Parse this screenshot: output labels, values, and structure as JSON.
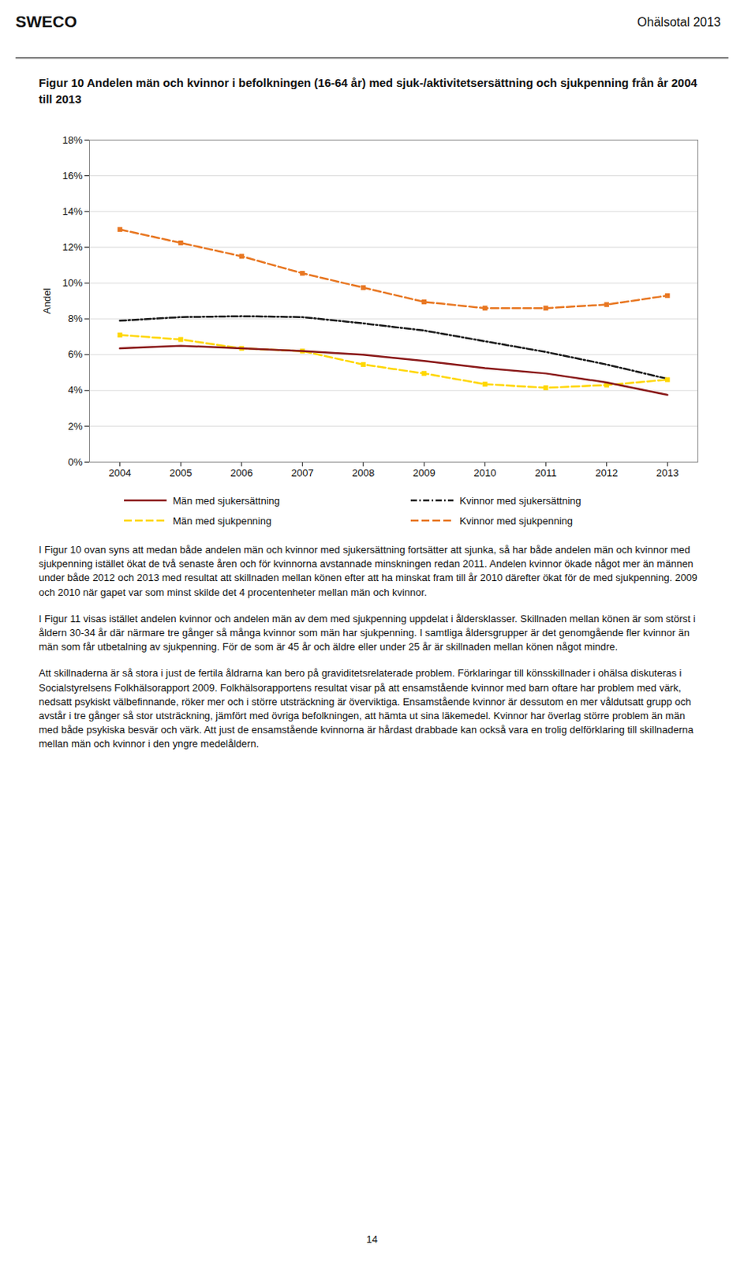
{
  "header_left": "SWECO",
  "header_right": "Ohälsotal 2013",
  "chart_data": {
    "type": "line",
    "title": "Figur 10 Andelen män och kvinnor i befolkningen (16-64 år) med sjuk-/aktivitetsersättning och sjukpenning från år 2004 till 2013",
    "x": [
      2004,
      2005,
      2006,
      2007,
      2008,
      2009,
      2010,
      2011,
      2012,
      2013
    ],
    "series": [
      {
        "name": "Kvinnor med sjukpenning",
        "color": "#E87722",
        "line_style": "dashed",
        "marker": "square",
        "values": [
          13.0,
          12.25,
          11.5,
          10.55,
          9.75,
          8.95,
          8.6,
          8.6,
          8.8,
          9.3
        ]
      },
      {
        "name": "Kvinnor med sjukersättning",
        "color": "#1a1a1a",
        "line_style": "dashdot",
        "values": [
          7.9,
          8.1,
          8.15,
          8.1,
          7.75,
          7.35,
          6.75,
          6.15,
          5.45,
          4.65
        ]
      },
      {
        "name": "Män med sjukpenning",
        "color": "#FFD700",
        "line_style": "dashed",
        "marker": "square",
        "values": [
          7.1,
          6.85,
          6.35,
          6.2,
          5.45,
          4.95,
          4.35,
          4.15,
          4.3,
          4.6
        ]
      },
      {
        "name": "Män med sjukersättning",
        "color": "#8B1A1A",
        "line_style": "solid",
        "values": [
          6.35,
          6.5,
          6.35,
          6.2,
          6.0,
          5.65,
          5.25,
          4.95,
          4.45,
          3.75
        ]
      }
    ],
    "ylabel": "Andel",
    "xlim": [
      2003.5,
      2013.5
    ],
    "xticks": [
      2004,
      2005,
      2006,
      2007,
      2008,
      2009,
      2010,
      2011,
      2012,
      2013
    ],
    "ylim": [
      0,
      18
    ],
    "yticks": [
      {
        "value": 0,
        "label": "0%"
      },
      {
        "value": 2,
        "label": "2%"
      },
      {
        "value": 4,
        "label": "4%"
      },
      {
        "value": 6,
        "label": "6%"
      },
      {
        "value": 8,
        "label": "8%"
      },
      {
        "value": 10,
        "label": "10%"
      },
      {
        "value": 12,
        "label": "12%"
      },
      {
        "value": 14,
        "label": "14%"
      },
      {
        "value": 16,
        "label": "16%"
      },
      {
        "value": 18,
        "label": "18%"
      }
    ],
    "grid": true
  },
  "body": [
    "I Figur 10 ovan syns att medan både andelen män och kvinnor med sjukersättning fortsätter att sjunka, så har både andelen män och kvinnor med sjukpenning istället ökat de två senaste åren och för kvinnorna avstannade minskningen redan 2011. Andelen kvinnor ökade något mer än männen under både 2012 och 2013 med resultat att skillnaden mellan könen efter att ha minskat fram till år 2010 därefter ökat för de med sjukpenning. 2009 och 2010 när gapet var som minst skilde det 4 procentenheter mellan män och kvinnor.",
    "I Figur 11 visas istället andelen kvinnor och andelen män av dem med sjukpenning uppdelat i åldersklasser. Skillnaden mellan könen är som störst i åldern 30-34 år där närmare tre gånger så många kvinnor som män har sjukpenning. I samtliga åldersgrupper är det genomgående fler kvinnor än män som får utbetalning av sjukpenning. För de som är 45 år och äldre eller under 25 år är skillnaden mellan könen något mindre.",
    "Att skillnaderna är så stora i just de fertila åldrarna kan bero på graviditetsrelaterade problem. Förklaringar till könsskillnader i ohälsa diskuteras i Socialstyrelsens Folkhälsorapport 2009. Folkhälsorapportens resultat visar på att ensamstående kvinnor med barn oftare har problem med värk, nedsatt psykiskt välbefinnande, röker mer och i större utsträckning är överviktiga. Ensamstående kvinnor är dessutom en mer våldutsatt grupp och avstår i tre gånger så stor utsträckning, jämfört med övriga befolkningen, att hämta ut sina läkemedel. Kvinnor har överlag större problem än män med både psykiska besvär och värk. Att just de ensamstående kvinnorna är hårdast drabbade kan också vara en trolig delförklaring till skillnaderna mellan män och kvinnor i den yngre medelåldern."
  ],
  "page_number": "14"
}
